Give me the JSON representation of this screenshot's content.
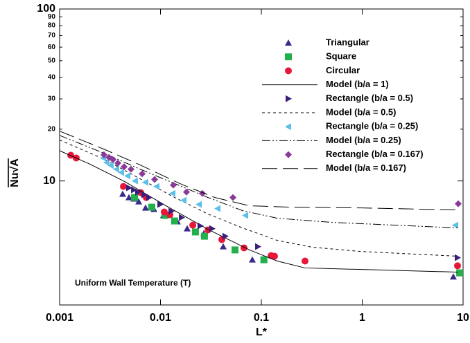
{
  "chart_data": {
    "type": "scatter",
    "x_label": "L*",
    "y_label": "Nu√A",
    "annotation": "Uniform Wall Temperature (T)",
    "x_scale": "log",
    "y_scale": "log",
    "xlim": [
      0.001,
      10
    ],
    "ylim": [
      1.9,
      100
    ],
    "xticks": [
      0.001,
      0.01,
      0.1,
      1,
      10
    ],
    "yticks": [
      10,
      20,
      30,
      40,
      50,
      60,
      70,
      80,
      90,
      100
    ],
    "legend": "upper right",
    "series": [
      {
        "name": "Triangular",
        "kind": "marker",
        "marker": "triangle-up",
        "color": "#3a2a8c",
        "x": [
          0.00422,
          0.00487,
          0.00544,
          0.00608,
          0.00711,
          0.00861,
          0.0107,
          0.0147,
          0.0184,
          0.0269,
          0.0419,
          0.0814,
          8.01
        ],
        "values": [
          8.39,
          8.01,
          7.87,
          7.58,
          6.97,
          6.84,
          6.3,
          5.8,
          5.28,
          4.95,
          4.15,
          3.48,
          2.77
        ]
      },
      {
        "name": "Square",
        "kind": "marker",
        "marker": "square",
        "color": "#21b04b",
        "x": [
          0.00553,
          0.0082,
          0.0111,
          0.0138,
          0.0222,
          0.0273,
          0.0548,
          0.106,
          9.25
        ],
        "values": [
          8.01,
          7.04,
          6.3,
          5.85,
          5.05,
          4.77,
          3.97,
          3.48,
          2.92
        ]
      },
      {
        "name": "Circular",
        "kind": "marker",
        "marker": "circle",
        "color": "#e8173a",
        "x": [
          0.00129,
          0.00146,
          0.00429,
          0.00637,
          0.00723,
          0.0109,
          0.0124,
          0.0209,
          0.0296,
          0.0406,
          0.0673,
          0.125,
          0.135,
          0.271,
          8.81
        ],
        "values": [
          14.1,
          13.6,
          9.29,
          8.55,
          8.01,
          6.6,
          6.36,
          5.53,
          5.19,
          4.56,
          4.08,
          3.68,
          3.65,
          3.42,
          3.21
        ]
      },
      {
        "name": "Model (b/a = 1)",
        "kind": "line",
        "dash": "solid",
        "color": "#000000",
        "x": [
          0.001,
          0.00201,
          0.00443,
          0.0114,
          0.0296,
          0.0764,
          0.144,
          0.271,
          8.81
        ],
        "values": [
          15.0,
          12.5,
          9.91,
          7.16,
          5.23,
          3.97,
          3.42,
          3.12,
          2.95
        ]
      },
      {
        "name": "Rectangle (b/a = 0.5)",
        "kind": "marker",
        "marker": "triangle-right",
        "color": "#3b1f7a",
        "x": [
          0.00487,
          0.00544,
          0.00598,
          0.00689,
          0.0077,
          0.00993,
          0.0128,
          0.0162,
          0.0248,
          0.0325,
          0.0439,
          0.0924,
          8.81
        ],
        "values": [
          9.12,
          8.87,
          8.62,
          8.31,
          8.01,
          7.3,
          6.66,
          6.13,
          5.48,
          5.28,
          4.77,
          4.15,
          3.58
        ]
      },
      {
        "name": "Model (b/a = 0.5)",
        "kind": "line",
        "dash": "dashed",
        "color": "#000000",
        "x": [
          0.001,
          0.00275,
          0.00608,
          0.0134,
          0.0296,
          0.0652,
          0.144,
          0.318,
          0.962,
          8.81
        ],
        "values": [
          17.3,
          13.4,
          10.4,
          8.09,
          6.42,
          5.33,
          4.51,
          4.12,
          3.89,
          3.65
        ]
      },
      {
        "name": "Rectangle (b/a = 0.25)",
        "kind": "marker",
        "marker": "triangle-left",
        "color": "#5bbfea",
        "x": [
          0.00271,
          0.00293,
          0.00322,
          0.00366,
          0.00409,
          0.00472,
          0.00561,
          0.00711,
          0.00917,
          0.0132,
          0.017,
          0.0241,
          0.0369,
          0.0695,
          8.4
        ],
        "values": [
          13.6,
          12.8,
          12.3,
          11.7,
          11.2,
          10.7,
          10.0,
          9.82,
          9.29,
          8.47,
          7.72,
          7.3,
          6.91,
          6.3,
          5.53
        ]
      },
      {
        "name": "Model (b/a = 0.25)",
        "kind": "line",
        "dash": "dashdotdot",
        "color": "#000000",
        "x": [
          0.001,
          0.00275,
          0.00608,
          0.0134,
          0.0296,
          0.0652,
          0.144,
          0.51,
          8.81
        ],
        "values": [
          18.4,
          14.5,
          11.8,
          9.73,
          8.01,
          6.72,
          6.07,
          5.74,
          5.33
        ]
      },
      {
        "name": "Rectangle (b/a = 0.167)",
        "kind": "marker",
        "marker": "diamond",
        "color": "#8a3a98",
        "x": [
          0.00275,
          0.00308,
          0.00338,
          0.00378,
          0.00436,
          0.0051,
          0.00658,
          0.00874,
          0.0134,
          0.0181,
          0.026,
          0.0523,
          8.95
        ],
        "values": [
          14.2,
          13.7,
          13.3,
          12.7,
          12.1,
          11.7,
          11.0,
          10.2,
          9.46,
          8.62,
          8.47,
          8.01,
          7.37
        ]
      },
      {
        "name": "Model (b/a = 0.167)",
        "kind": "line",
        "dash": "longdash",
        "color": "#000000",
        "x": [
          0.001,
          0.00275,
          0.00608,
          0.0157,
          0.0346,
          0.0764,
          0.198,
          0.962,
          8.81
        ],
        "values": [
          19.5,
          15.3,
          12.5,
          9.63,
          8.01,
          7.17,
          7.04,
          6.97,
          6.78
        ]
      }
    ]
  }
}
